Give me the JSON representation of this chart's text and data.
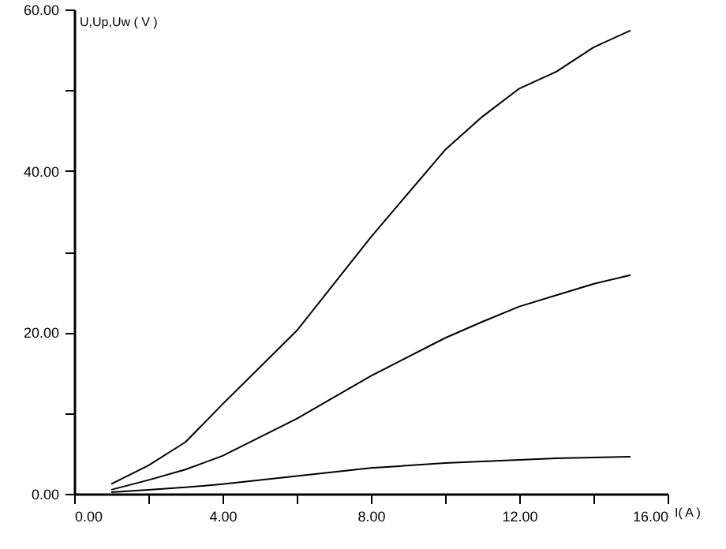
{
  "chart_data": {
    "type": "line",
    "xlabel": "I( A )",
    "ylabel": "U,Up,Uw ( V )",
    "xlim": [
      0,
      16
    ],
    "ylim": [
      0,
      60
    ],
    "xticks": [
      {
        "value": 0,
        "label": "0.00"
      },
      {
        "value": 2,
        "label": null
      },
      {
        "value": 4,
        "label": "4.00"
      },
      {
        "value": 6,
        "label": null
      },
      {
        "value": 8,
        "label": "8.00"
      },
      {
        "value": 10,
        "label": null
      },
      {
        "value": 12,
        "label": "12.00"
      },
      {
        "value": 14,
        "label": null
      },
      {
        "value": 16,
        "label": "16.00"
      }
    ],
    "yticks": [
      {
        "value": 0,
        "label": "0.00"
      },
      {
        "value": 10,
        "label": null
      },
      {
        "value": 20,
        "label": "20.00"
      },
      {
        "value": 30,
        "label": null
      },
      {
        "value": 40,
        "label": "40.00"
      },
      {
        "value": 50,
        "label": null
      },
      {
        "value": 60,
        "label": "60.00"
      }
    ],
    "grid": false,
    "marker": "none",
    "line_style": "solid",
    "x": [
      1,
      2,
      3,
      4,
      6,
      8,
      10,
      11,
      12,
      13,
      14,
      15
    ],
    "series": [
      {
        "color": "#000000",
        "values": [
          1.2,
          3.5,
          6.4,
          11.1,
          20.2,
          31.8,
          42.6,
          46.7,
          50.2,
          52.3,
          55.3,
          57.4
        ]
      },
      {
        "color": "#000000",
        "values": [
          0.5,
          1.7,
          3.0,
          4.7,
          9.3,
          14.6,
          19.3,
          21.3,
          23.2,
          24.6,
          26.0,
          27.1
        ]
      },
      {
        "color": "#000000",
        "values": [
          0.2,
          0.5,
          0.8,
          1.2,
          2.2,
          3.2,
          3.8,
          4.0,
          4.2,
          4.4,
          4.5,
          4.6
        ]
      }
    ]
  }
}
